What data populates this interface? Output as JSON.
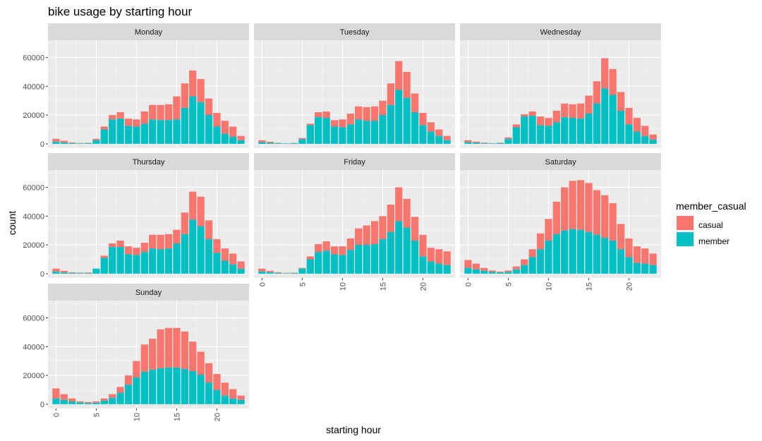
{
  "chart_data": {
    "type": "bar",
    "stacked": true,
    "title": "bike usage by starting hour",
    "xlabel": "starting hour",
    "ylabel": "count",
    "xlim": [
      -1,
      24
    ],
    "ylim": [
      -3000,
      72000
    ],
    "x_ticks": [
      0,
      5,
      10,
      15,
      20
    ],
    "y_ticks": [
      0,
      20000,
      40000,
      60000
    ],
    "grid": true,
    "facet_columns": 3,
    "legend": {
      "title": "member_casual",
      "position": "right",
      "entries": [
        {
          "label": "casual",
          "color": "#F8766D"
        },
        {
          "label": "member",
          "color": "#00BFC4"
        }
      ]
    },
    "hours": [
      0,
      1,
      2,
      3,
      4,
      5,
      6,
      7,
      8,
      9,
      10,
      11,
      12,
      13,
      14,
      15,
      16,
      17,
      18,
      19,
      20,
      21,
      22,
      23
    ],
    "panels": [
      {
        "name": "Monday",
        "member": [
          1500,
          900,
          500,
          300,
          400,
          2500,
          10000,
          17000,
          17500,
          12500,
          12000,
          14000,
          17000,
          16500,
          16500,
          17000,
          25000,
          33000,
          29000,
          20000,
          12000,
          7000,
          5000,
          2500
        ],
        "total": [
          3500,
          2200,
          1000,
          600,
          700,
          3500,
          12000,
          20000,
          22000,
          17500,
          17000,
          22500,
          27000,
          27000,
          27500,
          33000,
          42000,
          51000,
          45000,
          31500,
          21500,
          16000,
          12000,
          5500
        ]
      },
      {
        "name": "Tuesday",
        "member": [
          1200,
          700,
          400,
          300,
          400,
          3200,
          13000,
          18500,
          18000,
          12000,
          11500,
          13500,
          17000,
          16000,
          16000,
          20000,
          27000,
          37500,
          32000,
          22000,
          13000,
          8500,
          5500,
          2500
        ],
        "total": [
          2500,
          1500,
          700,
          400,
          600,
          4000,
          14000,
          22000,
          22500,
          16500,
          17000,
          21000,
          26000,
          25500,
          26000,
          30000,
          42000,
          57500,
          50000,
          35000,
          21500,
          15000,
          10000,
          5500
        ]
      },
      {
        "name": "Wednesday",
        "member": [
          1200,
          700,
          400,
          300,
          500,
          3500,
          11500,
          19000,
          19500,
          13000,
          12500,
          15000,
          18500,
          18000,
          17500,
          21000,
          28000,
          38500,
          34000,
          23000,
          13500,
          8500,
          5500,
          3000
        ],
        "total": [
          2500,
          1500,
          800,
          500,
          800,
          4500,
          13500,
          20500,
          22500,
          19000,
          18000,
          23000,
          28000,
          27500,
          28000,
          33500,
          43500,
          59500,
          52000,
          36000,
          25000,
          18000,
          12500,
          6500
        ]
      },
      {
        "name": "Thursday",
        "member": [
          1500,
          800,
          500,
          300,
          400,
          3500,
          11000,
          18500,
          18500,
          13500,
          13000,
          15000,
          17500,
          17000,
          17500,
          21000,
          27500,
          37500,
          33000,
          24000,
          14500,
          9000,
          6500,
          3500
        ],
        "total": [
          3500,
          2000,
          1000,
          700,
          800,
          3000,
          12500,
          21000,
          23000,
          19000,
          18000,
          21500,
          27000,
          27000,
          27500,
          30500,
          42500,
          57000,
          53500,
          37000,
          24000,
          17500,
          14000,
          8500
        ]
      },
      {
        "name": "Friday",
        "member": [
          1500,
          1000,
          500,
          300,
          400,
          3500,
          10000,
          15000,
          16000,
          13500,
          13000,
          16500,
          20000,
          20000,
          20500,
          24000,
          29000,
          36500,
          32000,
          23000,
          12000,
          8500,
          7000,
          6000
        ],
        "total": [
          3500,
          2000,
          1000,
          600,
          700,
          4000,
          12000,
          20500,
          22500,
          19000,
          19000,
          24500,
          31500,
          33500,
          36500,
          40000,
          48000,
          60000,
          52000,
          39500,
          27000,
          18000,
          17000,
          15500
        ]
      },
      {
        "name": "Saturday",
        "member": [
          4000,
          3000,
          2000,
          1200,
          800,
          1200,
          3000,
          6000,
          11500,
          17000,
          23000,
          27500,
          30000,
          31000,
          30500,
          29000,
          27000,
          25000,
          23000,
          17000,
          11500,
          7500,
          7000,
          6000
        ],
        "total": [
          9500,
          7000,
          4000,
          2200,
          1400,
          2200,
          5000,
          10000,
          17000,
          28000,
          38000,
          50000,
          60000,
          64500,
          65000,
          63000,
          58000,
          54500,
          49000,
          34500,
          24500,
          19000,
          17500,
          14000
        ]
      },
      {
        "name": "Sunday",
        "member": [
          4000,
          3000,
          2000,
          1200,
          800,
          1000,
          2500,
          4500,
          8000,
          13500,
          18500,
          22500,
          24000,
          25000,
          25500,
          25500,
          24500,
          23000,
          20500,
          15000,
          10000,
          6000,
          4000,
          3000
        ],
        "total": [
          11000,
          7000,
          4000,
          2000,
          1500,
          2000,
          4000,
          7000,
          12000,
          20000,
          30000,
          41500,
          45500,
          52000,
          53000,
          53000,
          50500,
          43500,
          36500,
          28500,
          21000,
          15000,
          10500,
          6000
        ]
      }
    ]
  }
}
